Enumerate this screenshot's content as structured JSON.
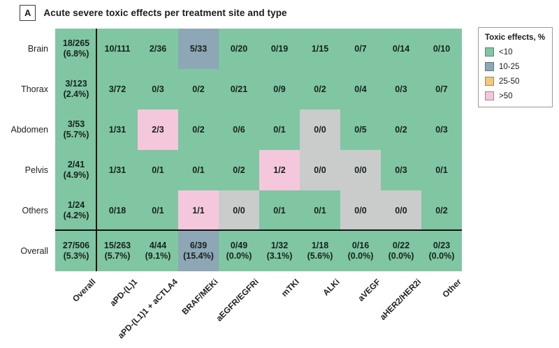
{
  "chart_data": {
    "type": "heatmap",
    "panel": "A",
    "title": "Acute severe toxic effects per treatment site and type",
    "value_format": "events/patients (percent)",
    "row_labels": [
      "Brain",
      "Thorax",
      "Abdomen",
      "Pelvis",
      "Others",
      "Overall"
    ],
    "column_labels": [
      "Overall",
      "aPD-(L)1",
      "aPD-(L1)1 + aCTLA4",
      "BRAF/MEKi",
      "aEGFR/EGFRi",
      "mTKI",
      "ALKi",
      "aVEGF",
      "aHER2/HER2i",
      "Other"
    ],
    "legend": {
      "title": "Toxic effects, %",
      "items": [
        {
          "label": "<10",
          "band": "lt10"
        },
        {
          "label": "10-25",
          "band": "b10to25"
        },
        {
          "label": "25-50",
          "band": "b25to50"
        },
        {
          "label": ">50",
          "band": "gt50"
        }
      ]
    },
    "band_colors": {
      "lt10": "#80c6a3",
      "b10to25": "#8da7b6",
      "b25to50": "#f4c87a",
      "gt50": "#f5c7dc",
      "na": "#cacccb"
    },
    "cells": [
      [
        {
          "value": "18/265",
          "pct": "(6.8%)",
          "band": "lt10"
        },
        {
          "value": "10/111",
          "band": "lt10"
        },
        {
          "value": "2/36",
          "band": "lt10"
        },
        {
          "value": "5/33",
          "band": "b10to25"
        },
        {
          "value": "0/20",
          "band": "lt10"
        },
        {
          "value": "0/19",
          "band": "lt10"
        },
        {
          "value": "1/15",
          "band": "lt10"
        },
        {
          "value": "0/7",
          "band": "lt10"
        },
        {
          "value": "0/14",
          "band": "lt10"
        },
        {
          "value": "0/10",
          "band": "lt10"
        }
      ],
      [
        {
          "value": "3/123",
          "pct": "(2.4%)",
          "band": "lt10"
        },
        {
          "value": "3/72",
          "band": "lt10"
        },
        {
          "value": "0/3",
          "band": "lt10"
        },
        {
          "value": "0/2",
          "band": "lt10"
        },
        {
          "value": "0/21",
          "band": "lt10"
        },
        {
          "value": "0/9",
          "band": "lt10"
        },
        {
          "value": "0/2",
          "band": "lt10"
        },
        {
          "value": "0/4",
          "band": "lt10"
        },
        {
          "value": "0/3",
          "band": "lt10"
        },
        {
          "value": "0/7",
          "band": "lt10"
        }
      ],
      [
        {
          "value": "3/53",
          "pct": "(5.7%)",
          "band": "lt10"
        },
        {
          "value": "1/31",
          "band": "lt10"
        },
        {
          "value": "2/3",
          "band": "gt50"
        },
        {
          "value": "0/2",
          "band": "lt10"
        },
        {
          "value": "0/6",
          "band": "lt10"
        },
        {
          "value": "0/1",
          "band": "lt10"
        },
        {
          "value": "0/0",
          "band": "na"
        },
        {
          "value": "0/5",
          "band": "lt10"
        },
        {
          "value": "0/2",
          "band": "lt10"
        },
        {
          "value": "0/3",
          "band": "lt10"
        }
      ],
      [
        {
          "value": "2/41",
          "pct": "(4.9%)",
          "band": "lt10"
        },
        {
          "value": "1/31",
          "band": "lt10"
        },
        {
          "value": "0/1",
          "band": "lt10"
        },
        {
          "value": "0/1",
          "band": "lt10"
        },
        {
          "value": "0/2",
          "band": "lt10"
        },
        {
          "value": "1/2",
          "band": "gt50"
        },
        {
          "value": "0/0",
          "band": "na"
        },
        {
          "value": "0/0",
          "band": "na"
        },
        {
          "value": "0/3",
          "band": "lt10"
        },
        {
          "value": "0/1",
          "band": "lt10"
        }
      ],
      [
        {
          "value": "1/24",
          "pct": "(4.2%)",
          "band": "lt10"
        },
        {
          "value": "0/18",
          "band": "lt10"
        },
        {
          "value": "0/1",
          "band": "lt10"
        },
        {
          "value": "1/1",
          "band": "gt50"
        },
        {
          "value": "0/0",
          "band": "na"
        },
        {
          "value": "0/1",
          "band": "lt10"
        },
        {
          "value": "0/1",
          "band": "lt10"
        },
        {
          "value": "0/0",
          "band": "na"
        },
        {
          "value": "0/0",
          "band": "na"
        },
        {
          "value": "0/2",
          "band": "lt10"
        }
      ],
      [
        {
          "value": "27/506",
          "pct": "(5.3%)",
          "band": "lt10"
        },
        {
          "value": "15/263",
          "pct": "(5.7%)",
          "band": "lt10"
        },
        {
          "value": "4/44",
          "pct": "(9.1%)",
          "band": "lt10"
        },
        {
          "value": "6/39",
          "pct": "(15.4%)",
          "band": "b10to25"
        },
        {
          "value": "0/49",
          "pct": "(0.0%)",
          "band": "lt10"
        },
        {
          "value": "1/32",
          "pct": "(3.1%)",
          "band": "lt10"
        },
        {
          "value": "1/18",
          "pct": "(5.6%)",
          "band": "lt10"
        },
        {
          "value": "0/16",
          "pct": "(0.0%)",
          "band": "lt10"
        },
        {
          "value": "0/22",
          "pct": "(0.0%)",
          "band": "lt10"
        },
        {
          "value": "0/23",
          "pct": "(0.0%)",
          "band": "lt10"
        }
      ]
    ]
  }
}
